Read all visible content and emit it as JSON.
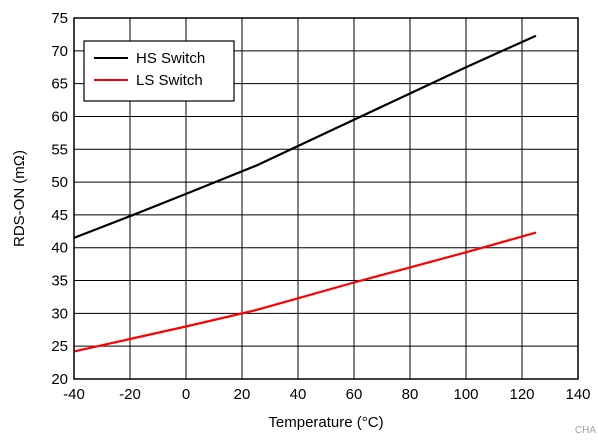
{
  "chart_data": {
    "type": "line",
    "xlabel": "Temperature (°C)",
    "ylabel": "RDS-ON (mΩ)",
    "xlim": [
      -40,
      140
    ],
    "ylim": [
      20,
      75
    ],
    "xticks": [
      -40,
      -20,
      0,
      20,
      40,
      60,
      80,
      100,
      120,
      140
    ],
    "yticks": [
      20,
      25,
      30,
      35,
      40,
      45,
      50,
      55,
      60,
      65,
      70,
      75
    ],
    "grid": true,
    "legend_position": "top-left",
    "series": [
      {
        "name": "HS Switch",
        "color": "#000000",
        "x": [
          -40,
          -20,
          0,
          25,
          40,
          60,
          80,
          100,
          125
        ],
        "y": [
          41.5,
          44.8,
          48.2,
          52.5,
          55.5,
          59.5,
          63.5,
          67.5,
          72.3
        ]
      },
      {
        "name": "LS Switch",
        "color": "#ff0000",
        "x": [
          -40,
          -20,
          0,
          25,
          40,
          60,
          80,
          100,
          125
        ],
        "y": [
          24.2,
          26.1,
          28.0,
          30.5,
          32.3,
          34.7,
          37.0,
          39.3,
          42.3
        ]
      }
    ]
  },
  "watermark": "CHA"
}
